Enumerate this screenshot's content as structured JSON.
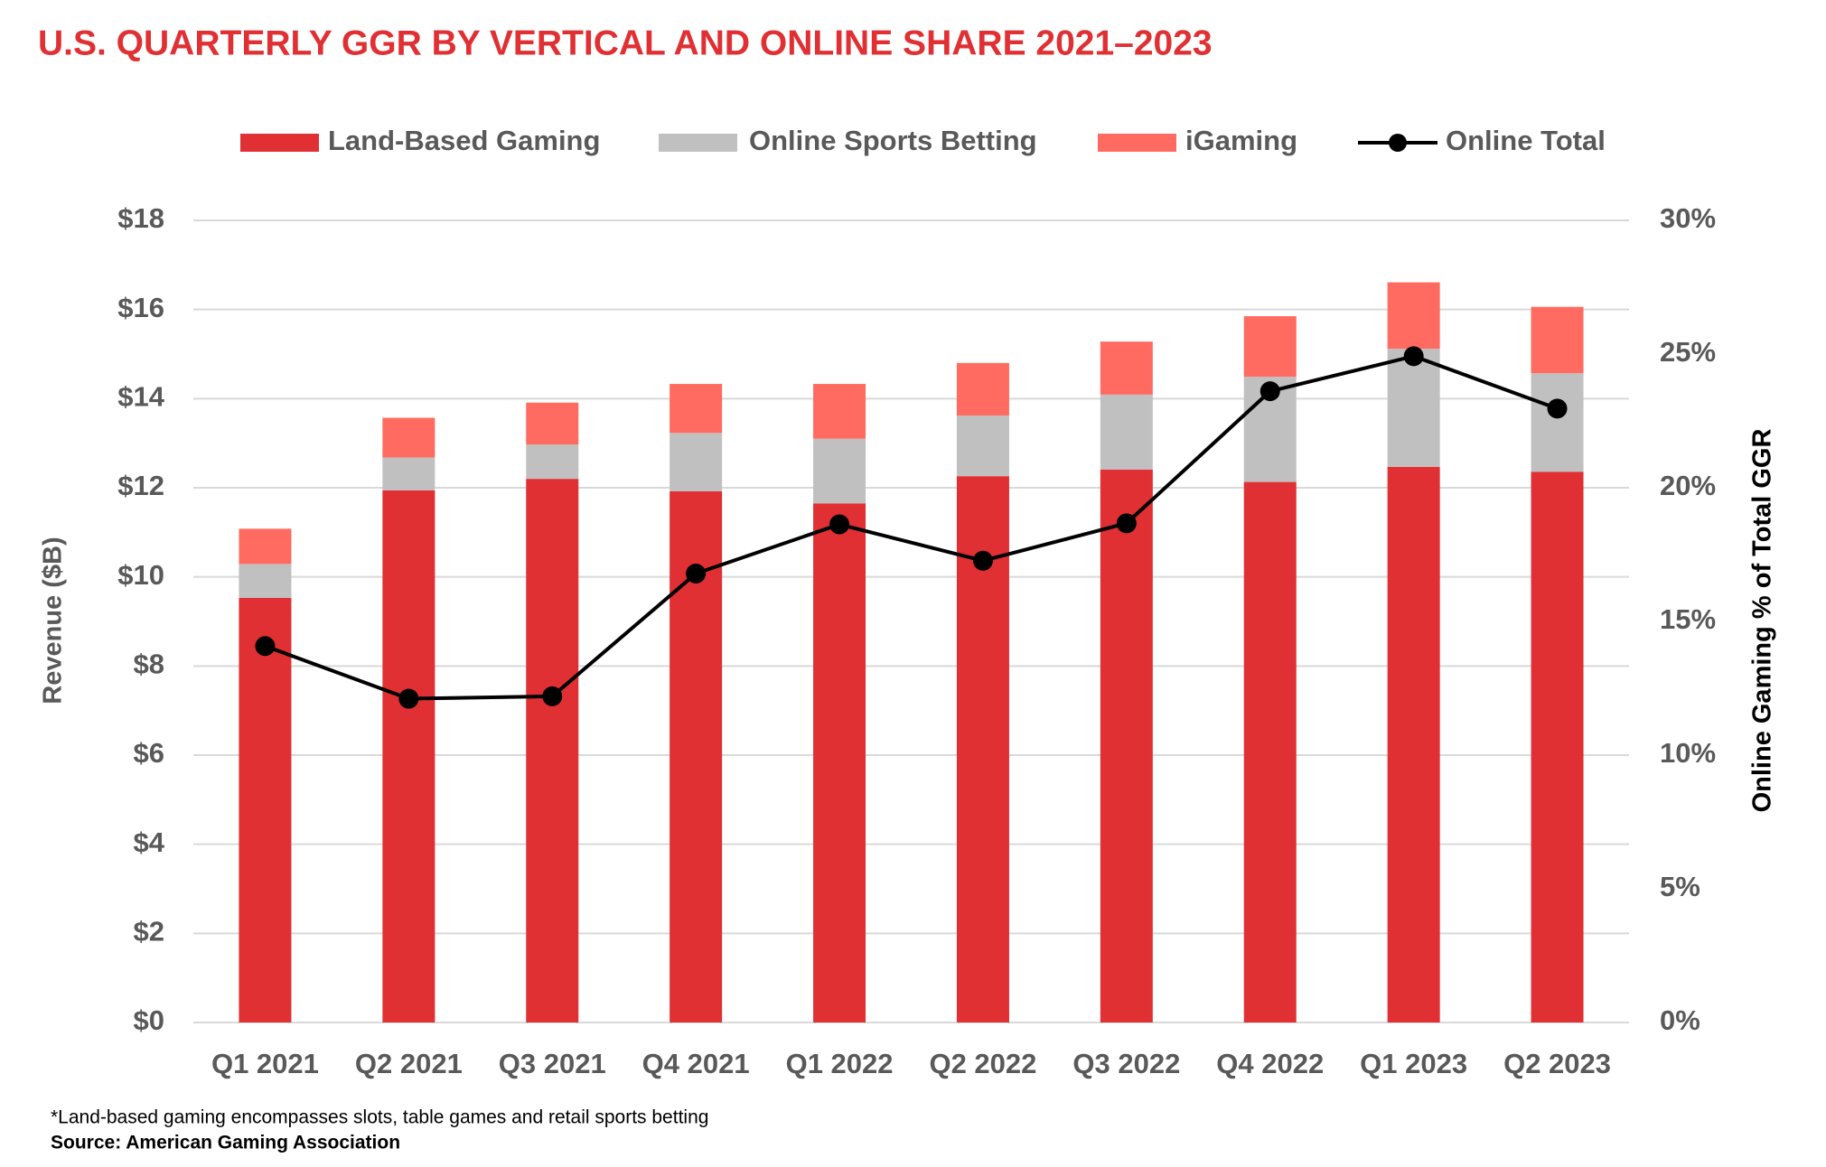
{
  "chart_data": {
    "type": "bar",
    "title": "U.S. QUARTERLY GGR BY VERTICAL AND ONLINE SHARE 2021–2023",
    "ylabel": "Revenue ($B)",
    "y2label": "Online Gaming % of Total GGR",
    "categories": [
      "Q1 2021",
      "Q2 2021",
      "Q3 2021",
      "Q4 2021",
      "Q1 2022",
      "Q2 2022",
      "Q3 2022",
      "Q4 2022",
      "Q1 2023",
      "Q2 2023"
    ],
    "series": [
      {
        "name": "Land-Based Gaming",
        "color": "#e03033",
        "values": [
          9.53,
          11.94,
          12.2,
          11.92,
          11.65,
          12.26,
          12.41,
          12.13,
          12.47,
          12.36
        ]
      },
      {
        "name": "Online Sports Betting",
        "color": "#c0c0c0",
        "values": [
          0.76,
          0.74,
          0.77,
          1.31,
          1.45,
          1.36,
          1.68,
          2.36,
          2.65,
          2.21
        ]
      },
      {
        "name": "iGaming",
        "color": "#ff6b60",
        "values": [
          0.79,
          0.89,
          0.94,
          1.1,
          1.23,
          1.18,
          1.19,
          1.36,
          1.49,
          1.49
        ]
      },
      {
        "name": "Online Total",
        "color": "#000000",
        "type": "line",
        "axis": "y2",
        "values": [
          14.08,
          12.11,
          12.2,
          16.79,
          18.63,
          17.27,
          18.67,
          23.61,
          24.92,
          22.96
        ]
      }
    ],
    "ylim": [
      0,
      18
    ],
    "yticks": [
      {
        "value": 0,
        "label": "$0"
      },
      {
        "value": 2,
        "label": "$2"
      },
      {
        "value": 4,
        "label": "$4"
      },
      {
        "value": 6,
        "label": "$6"
      },
      {
        "value": 8,
        "label": "$8"
      },
      {
        "value": 10,
        "label": "$10"
      },
      {
        "value": 12,
        "label": "$12"
      },
      {
        "value": 14,
        "label": "$14"
      },
      {
        "value": 16,
        "label": "$16"
      },
      {
        "value": 18,
        "label": "$18"
      }
    ],
    "y2lim": [
      0,
      30
    ],
    "y2ticks": [
      {
        "value": 0,
        "label": "0%"
      },
      {
        "value": 5,
        "label": "5%"
      },
      {
        "value": 10,
        "label": "10%"
      },
      {
        "value": 15,
        "label": "15%"
      },
      {
        "value": 20,
        "label": "20%"
      },
      {
        "value": 25,
        "label": "25%"
      },
      {
        "value": 30,
        "label": "30%"
      }
    ],
    "grid": true,
    "stacked": true,
    "legend": "top",
    "note": "*Land-based gaming encompasses slots, table games and retail sports betting",
    "source": "Source: American Gaming Association"
  }
}
